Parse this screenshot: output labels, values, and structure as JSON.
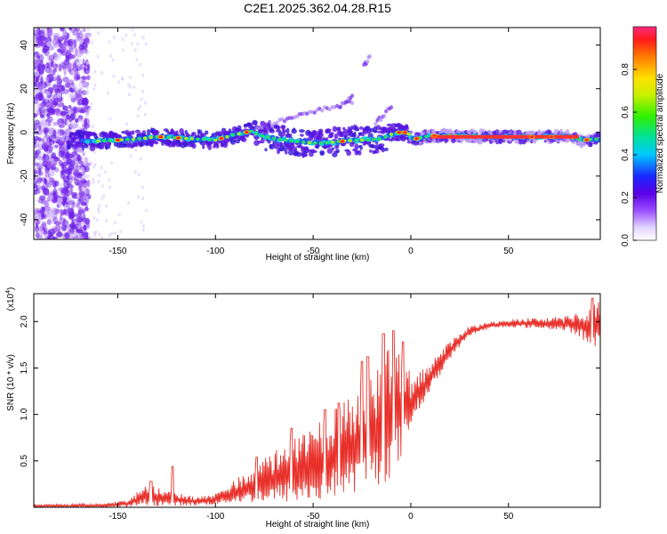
{
  "title": "C2E1.2025.362.04.28.R15",
  "chart_data": [
    {
      "type": "heatmap",
      "name": "spectrogram",
      "xlabel": "Height of straight line (km)",
      "ylabel": "Frequency (Hz)",
      "xlim": [
        -193,
        97
      ],
      "ylim": [
        -49,
        48
      ],
      "xticks": [
        -150,
        -100,
        -50,
        0,
        50
      ],
      "yticks": [
        -40,
        -20,
        0,
        20,
        40
      ],
      "ridge": [
        {
          "x": -170,
          "y": -3.5
        },
        {
          "x": -160,
          "y": -4
        },
        {
          "x": -150,
          "y": -3.5
        },
        {
          "x": -140,
          "y": -3
        },
        {
          "x": -130,
          "y": -2
        },
        {
          "x": -120,
          "y": -2.5
        },
        {
          "x": -110,
          "y": -3
        },
        {
          "x": -100,
          "y": -3.5
        },
        {
          "x": -90,
          "y": -1
        },
        {
          "x": -82,
          "y": 0.5
        },
        {
          "x": -75,
          "y": -2
        },
        {
          "x": -65,
          "y": -3.5
        },
        {
          "x": -55,
          "y": -4.5
        },
        {
          "x": -45,
          "y": -5
        },
        {
          "x": -35,
          "y": -4
        },
        {
          "x": -25,
          "y": -3.5
        },
        {
          "x": -15,
          "y": -3
        },
        {
          "x": -8,
          "y": 0
        },
        {
          "x": -2,
          "y": 0
        },
        {
          "x": 2,
          "y": -3
        },
        {
          "x": 10,
          "y": -1.5
        },
        {
          "x": 20,
          "y": -1.5
        },
        {
          "x": 40,
          "y": -2
        },
        {
          "x": 60,
          "y": -2
        },
        {
          "x": 80,
          "y": -2
        },
        {
          "x": 88,
          "y": -3.5
        },
        {
          "x": 97,
          "y": -3
        }
      ],
      "colorbar": {
        "label": "Normalized spectral amplitude",
        "ticks": [
          0.0,
          0.2,
          0.4,
          0.6,
          0.8
        ],
        "tick_labels": [
          "0.0",
          "0.2",
          "0.4",
          "0.6",
          "0.8"
        ],
        "range": [
          0,
          1
        ]
      }
    },
    {
      "type": "line",
      "name": "snr",
      "xlabel": "Height of straight line (km)",
      "ylabel": "SNR (10 * v/v)",
      "scale_label": "(x10",
      "scale_exp": "4",
      "scale_close": ")",
      "xlim": [
        -193,
        97
      ],
      "ylim": [
        0,
        2.3
      ],
      "xticks": [
        -150,
        -100,
        -50,
        0,
        50
      ],
      "yticks": [
        0.5,
        1.0,
        1.5,
        2.0
      ],
      "ytick_labels": [
        "0.5",
        "1.0",
        "1.5",
        "2.0"
      ],
      "color": "#e8302a",
      "envelope": [
        {
          "x": -193,
          "lo": 0.0,
          "hi": 0.03
        },
        {
          "x": -160,
          "lo": 0.0,
          "hi": 0.04
        },
        {
          "x": -145,
          "lo": 0.0,
          "hi": 0.08
        },
        {
          "x": -135,
          "lo": 0.02,
          "hi": 0.25
        },
        {
          "x": -125,
          "lo": 0.01,
          "hi": 0.18
        },
        {
          "x": -110,
          "lo": 0.02,
          "hi": 0.12
        },
        {
          "x": -100,
          "lo": 0.03,
          "hi": 0.15
        },
        {
          "x": -90,
          "lo": 0.05,
          "hi": 0.3
        },
        {
          "x": -80,
          "lo": 0.05,
          "hi": 0.45
        },
        {
          "x": -70,
          "lo": 0.05,
          "hi": 0.6
        },
        {
          "x": -60,
          "lo": 0.05,
          "hi": 0.75
        },
        {
          "x": -50,
          "lo": 0.05,
          "hi": 0.85
        },
        {
          "x": -40,
          "lo": 0.1,
          "hi": 1.05
        },
        {
          "x": -30,
          "lo": 0.15,
          "hi": 1.2
        },
        {
          "x": -20,
          "lo": 0.2,
          "hi": 1.45
        },
        {
          "x": -10,
          "lo": 0.3,
          "hi": 1.75
        },
        {
          "x": -4,
          "lo": 0.5,
          "hi": 1.75
        },
        {
          "x": 0,
          "lo": 0.9,
          "hi": 1.4
        },
        {
          "x": 10,
          "lo": 1.25,
          "hi": 1.55
        },
        {
          "x": 20,
          "lo": 1.6,
          "hi": 1.8
        },
        {
          "x": 30,
          "lo": 1.85,
          "hi": 1.95
        },
        {
          "x": 40,
          "lo": 1.92,
          "hi": 2.0
        },
        {
          "x": 50,
          "lo": 1.94,
          "hi": 2.02
        },
        {
          "x": 60,
          "lo": 1.93,
          "hi": 2.04
        },
        {
          "x": 70,
          "lo": 1.92,
          "hi": 2.04
        },
        {
          "x": 80,
          "lo": 1.9,
          "hi": 2.06
        },
        {
          "x": 90,
          "lo": 1.78,
          "hi": 2.15
        },
        {
          "x": 97,
          "lo": 1.7,
          "hi": 2.25
        }
      ],
      "spikes": [
        {
          "x": -133,
          "y": 0.28
        },
        {
          "x": -122,
          "y": 0.44
        },
        {
          "x": -79,
          "y": 0.54
        },
        {
          "x": -61,
          "y": 0.85
        },
        {
          "x": -44,
          "y": 1.05
        },
        {
          "x": -37,
          "y": 1.12
        },
        {
          "x": -25,
          "y": 1.57
        },
        {
          "x": -22,
          "y": 1.62
        },
        {
          "x": -14,
          "y": 1.87
        },
        {
          "x": -9,
          "y": 1.9
        },
        {
          "x": -4,
          "y": 1.78
        },
        {
          "x": 93,
          "y": 2.25
        }
      ]
    }
  ]
}
